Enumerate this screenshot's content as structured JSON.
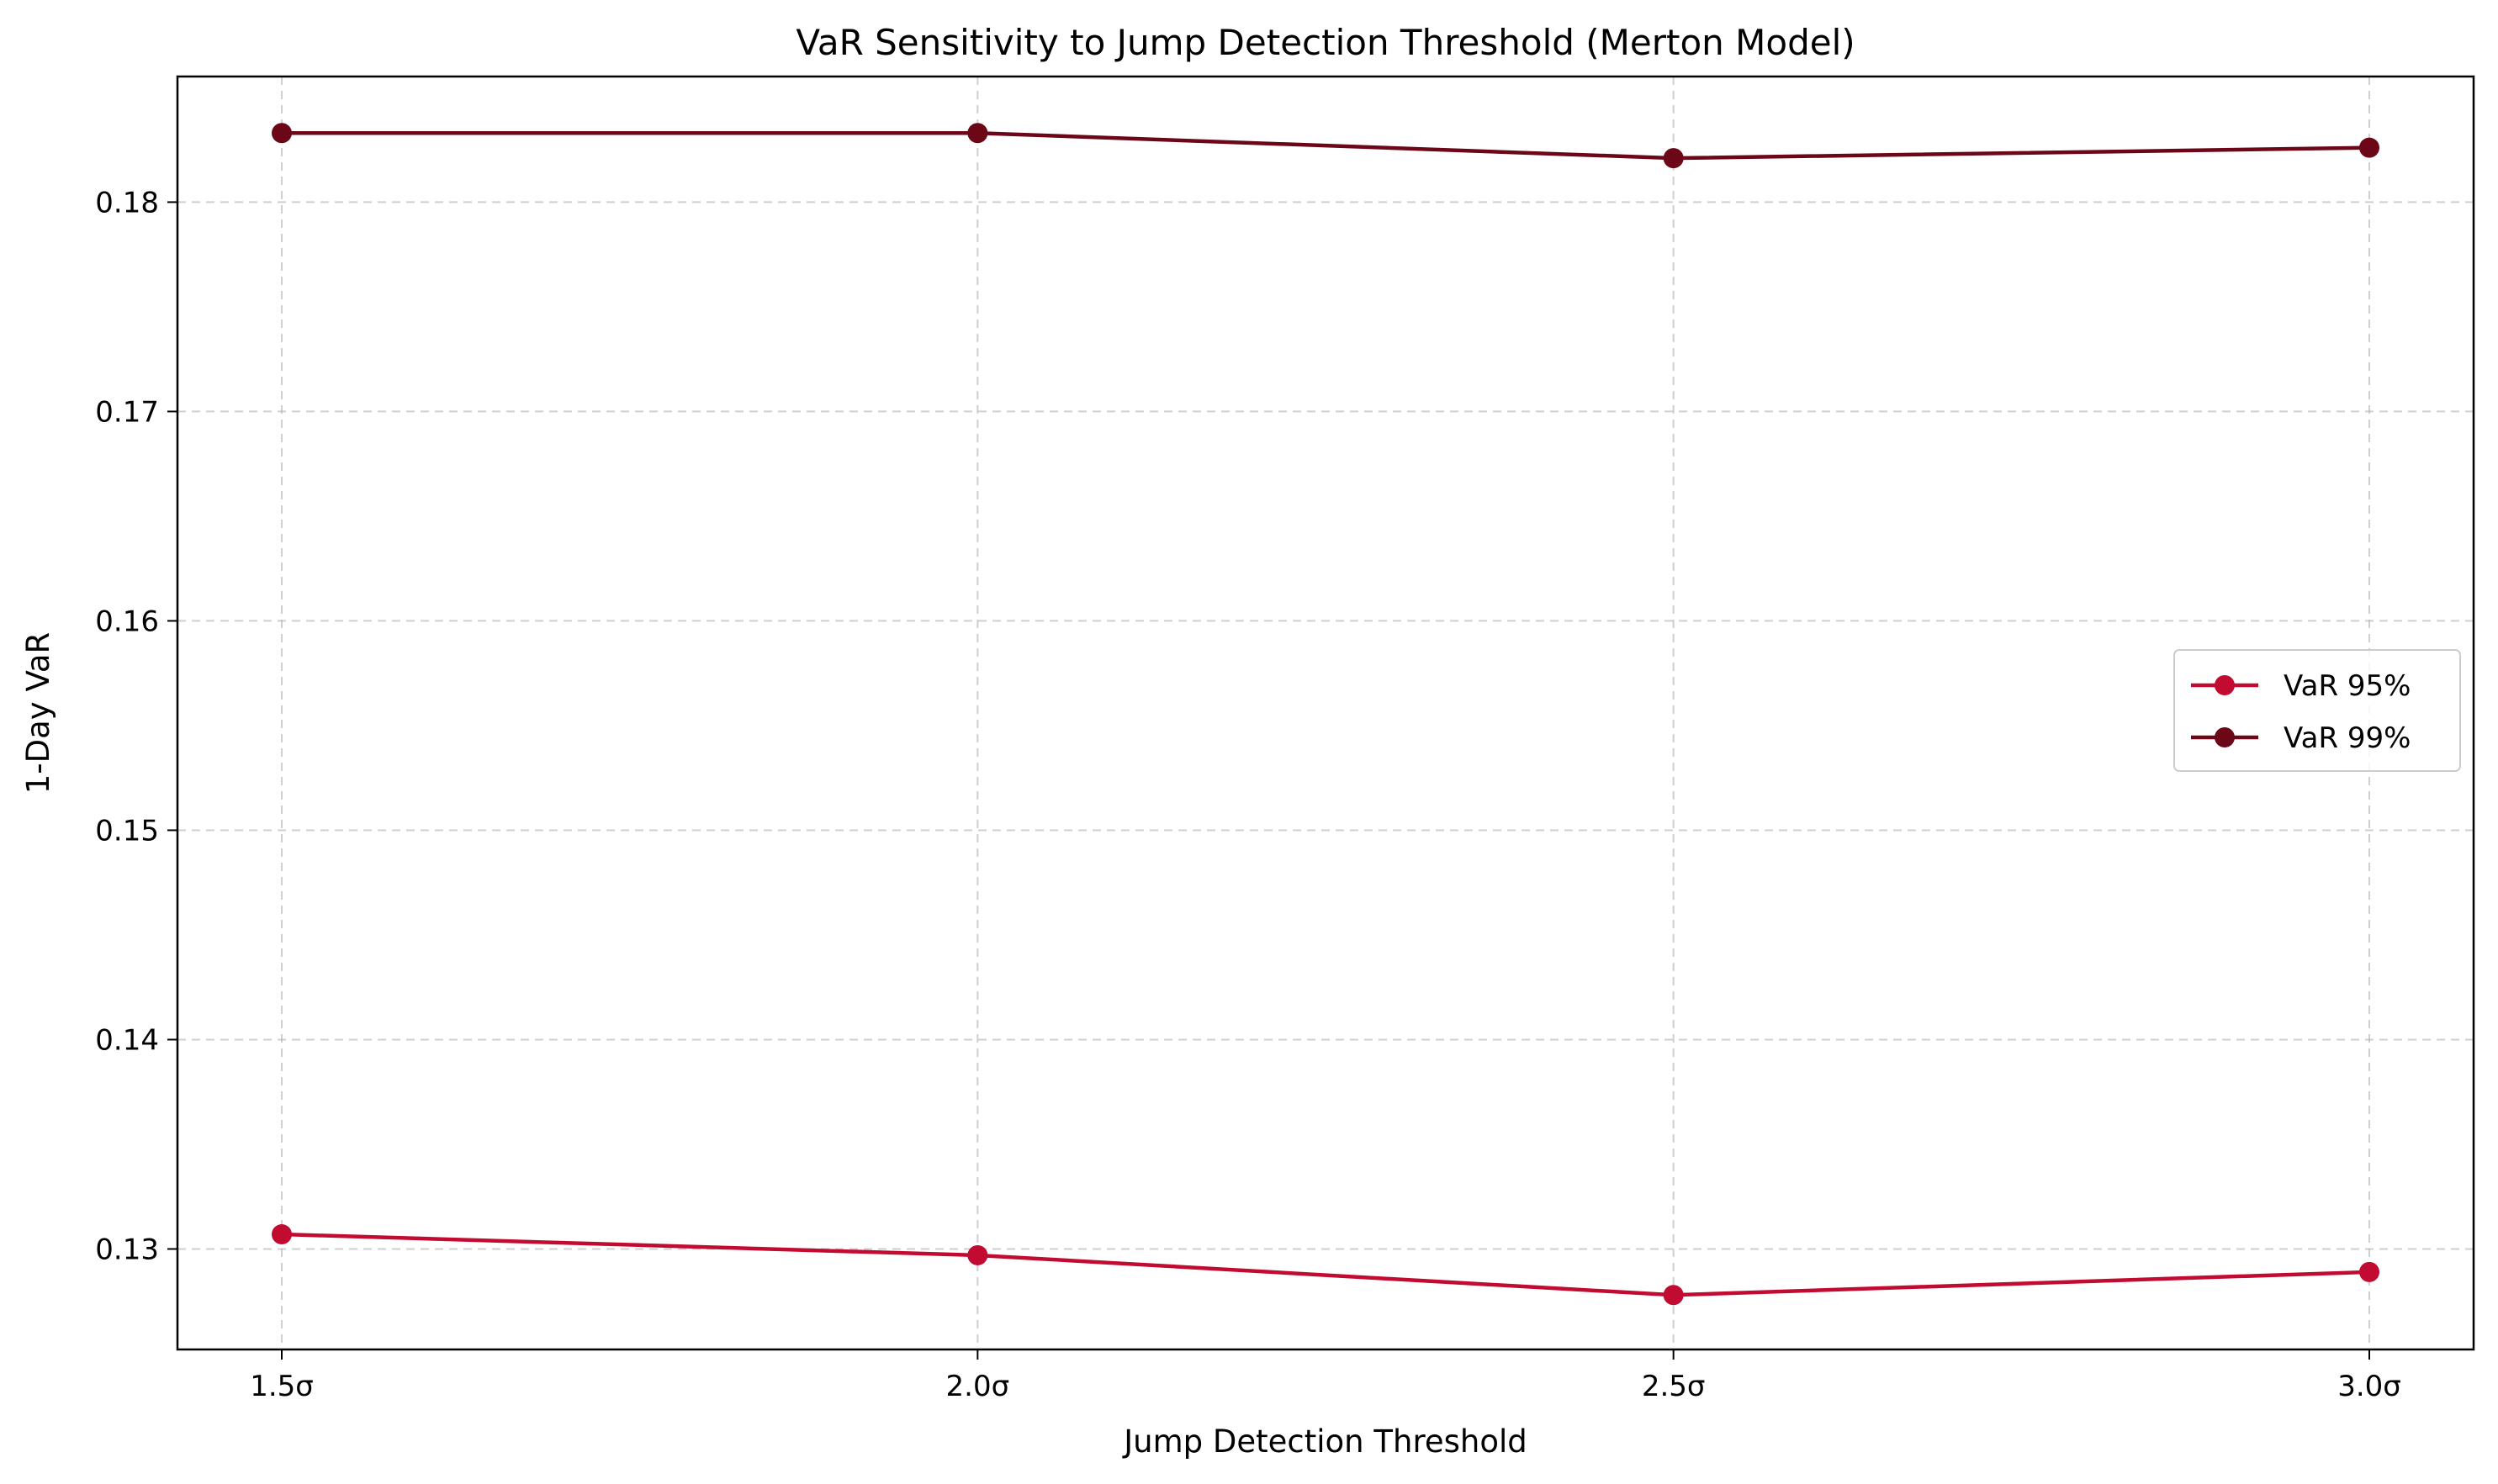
{
  "chart_data": {
    "type": "line",
    "title": "VaR Sensitivity to Jump Detection Threshold (Merton Model)",
    "xlabel": "Jump Detection Threshold",
    "ylabel": "1-Day VaR",
    "categories": [
      "1.5σ",
      "2.0σ",
      "2.5σ",
      "3.0σ"
    ],
    "ylim": [
      0.1252,
      0.186
    ],
    "yticks": [
      0.13,
      0.14,
      0.15,
      0.16,
      0.17,
      0.18
    ],
    "ytick_labels": [
      "0.13",
      "0.14",
      "0.15",
      "0.16",
      "0.17",
      "0.18"
    ],
    "grid": true,
    "legend_position": "center-right",
    "series": [
      {
        "name": "VaR 95%",
        "color": "#c20b30",
        "values": [
          0.1307,
          0.1297,
          0.1278,
          0.1289
        ]
      },
      {
        "name": "VaR 99%",
        "color": "#6b0717",
        "values": [
          0.1833,
          0.1833,
          0.1821,
          0.1826
        ]
      }
    ]
  }
}
